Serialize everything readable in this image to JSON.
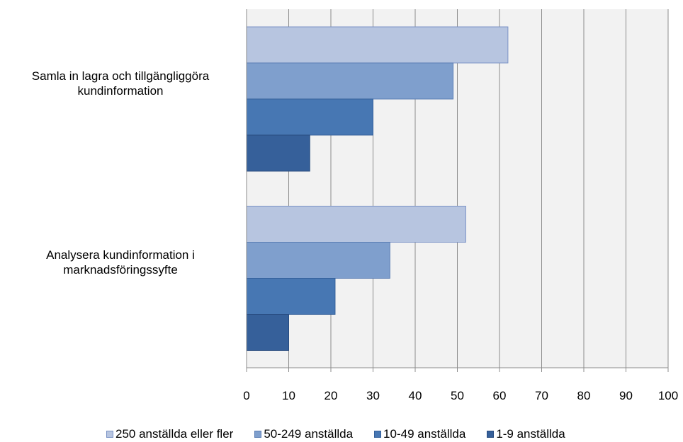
{
  "chart_data": {
    "type": "bar",
    "orientation": "horizontal",
    "title": "",
    "xlabel": "",
    "ylabel": "",
    "categories": [
      "Samla in lagra och tillgängliggöra kundinformation",
      "Analysera kundinformation i marknadsföringssyfte"
    ],
    "category_lines": [
      [
        "Samla in lagra och tillgängliggöra",
        "kundinformation"
      ],
      [
        "Analysera kundinformation i",
        "marknadsföringssyfte"
      ]
    ],
    "series": [
      {
        "name": "250 anställda eller fler",
        "values": [
          62,
          52
        ],
        "color": "#b7c5e0",
        "border": "#7b93c6"
      },
      {
        "name": "50-249 anställda",
        "values": [
          49,
          34
        ],
        "color": "#7f9fcd",
        "border": "#5a7db4"
      },
      {
        "name": "10-49 anställda",
        "values": [
          30,
          21
        ],
        "color": "#4777b3",
        "border": "#34609b"
      },
      {
        "name": "1-9 anställda",
        "values": [
          15,
          10
        ],
        "color": "#36609a",
        "border": "#284c80"
      }
    ],
    "xlim": [
      0,
      100
    ],
    "xticks": [
      "0",
      "10",
      "20",
      "30",
      "40",
      "50",
      "60",
      "70",
      "80",
      "90",
      "100"
    ],
    "grid": true,
    "legend_position": "bottom",
    "plot_background": "#f2f2f2"
  }
}
